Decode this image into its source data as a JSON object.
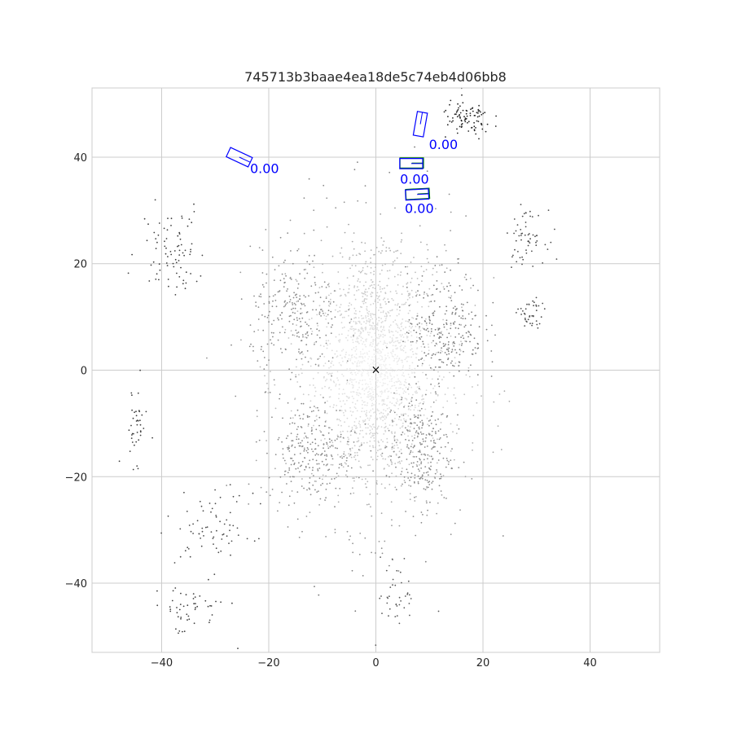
{
  "chart_data": {
    "type": "scatter",
    "title": "745713b3baae4ea18de5c74eb4d06bb8",
    "xlabel": "",
    "ylabel": "",
    "xlim": [
      -53,
      53
    ],
    "ylim": [
      -53,
      53
    ],
    "xticks": [
      -40,
      -20,
      0,
      20,
      40
    ],
    "yticks": [
      -40,
      -20,
      0,
      20,
      40
    ],
    "tick_labels": {
      "x": [
        "−40",
        "−20",
        "0",
        "20",
        "40"
      ],
      "y": [
        "−40",
        "−20",
        "0",
        "20",
        "40"
      ]
    },
    "grid": true,
    "ego_marker": {
      "x": 0,
      "y": 0,
      "symbol": "×"
    },
    "colors": {
      "grid": "#cccccc",
      "prediction_box": "#0000ff",
      "ground_truth_box": "#008000",
      "score_text": "#0000ff",
      "points_far": "#333333",
      "points_near": "#e6e6e6"
    },
    "prediction_boxes": [
      {
        "cx": -25.5,
        "cy": 40.0,
        "length": 4.5,
        "width": 1.9,
        "heading_deg": -25,
        "score": "0.00"
      },
      {
        "cx": 8.3,
        "cy": 46.2,
        "length": 4.5,
        "width": 1.9,
        "heading_deg": 80,
        "score": "0.00"
      },
      {
        "cx": 6.6,
        "cy": 38.8,
        "length": 4.3,
        "width": 1.9,
        "heading_deg": 0,
        "score": "0.00"
      },
      {
        "cx": 7.7,
        "cy": 33.0,
        "length": 4.3,
        "width": 1.9,
        "heading_deg": 3,
        "score": "0.00"
      }
    ],
    "ground_truth_boxes": [
      {
        "cx": 6.7,
        "cy": 38.9,
        "length": 4.4,
        "width": 1.9,
        "heading_deg": 0
      },
      {
        "cx": 7.8,
        "cy": 33.1,
        "length": 4.4,
        "width": 1.9,
        "heading_deg": 3
      }
    ],
    "score_labels": [
      {
        "x": -23.5,
        "y": 37.0,
        "text": "0.00"
      },
      {
        "x": 9.9,
        "y": 41.5,
        "text": "0.00"
      },
      {
        "x": 4.5,
        "y": 35.0,
        "text": "0.00"
      },
      {
        "x": 5.4,
        "y": 29.5,
        "text": "0.00"
      }
    ],
    "point_clusters": [
      {
        "x": 0,
        "y": 0,
        "rx": 7,
        "ry": 16,
        "n": 900,
        "shade": 0.95
      },
      {
        "x": 0,
        "y": 0,
        "rx": 14,
        "ry": 24,
        "n": 900,
        "shade": 0.85
      },
      {
        "x": -12,
        "y": -15,
        "rx": 7,
        "ry": 8,
        "n": 260,
        "shade": 0.55
      },
      {
        "x": 8,
        "y": -15,
        "rx": 5,
        "ry": 9,
        "n": 260,
        "shade": 0.55
      },
      {
        "x": 13,
        "y": 8,
        "rx": 6,
        "ry": 9,
        "n": 260,
        "shade": 0.5
      },
      {
        "x": -15,
        "y": 10,
        "rx": 7,
        "ry": 10,
        "n": 260,
        "shade": 0.55
      },
      {
        "x": 17,
        "y": 47,
        "rx": 4,
        "ry": 3,
        "n": 90,
        "shade": 0.15
      },
      {
        "x": -38,
        "y": 23,
        "rx": 5,
        "ry": 7,
        "n": 80,
        "shade": 0.25
      },
      {
        "x": 28,
        "y": 25,
        "rx": 3,
        "ry": 4,
        "n": 60,
        "shade": 0.3
      },
      {
        "x": -30,
        "y": -30,
        "rx": 6,
        "ry": 6,
        "n": 70,
        "shade": 0.3
      },
      {
        "x": -45,
        "y": -10,
        "rx": 2,
        "ry": 6,
        "n": 40,
        "shade": 0.25
      },
      {
        "x": 29,
        "y": 10,
        "rx": 2,
        "ry": 3,
        "n": 40,
        "shade": 0.3
      },
      {
        "x": -35,
        "y": -45,
        "rx": 6,
        "ry": 4,
        "n": 50,
        "shade": 0.25
      },
      {
        "x": 4,
        "y": -42,
        "rx": 3,
        "ry": 6,
        "n": 40,
        "shade": 0.35
      }
    ]
  }
}
